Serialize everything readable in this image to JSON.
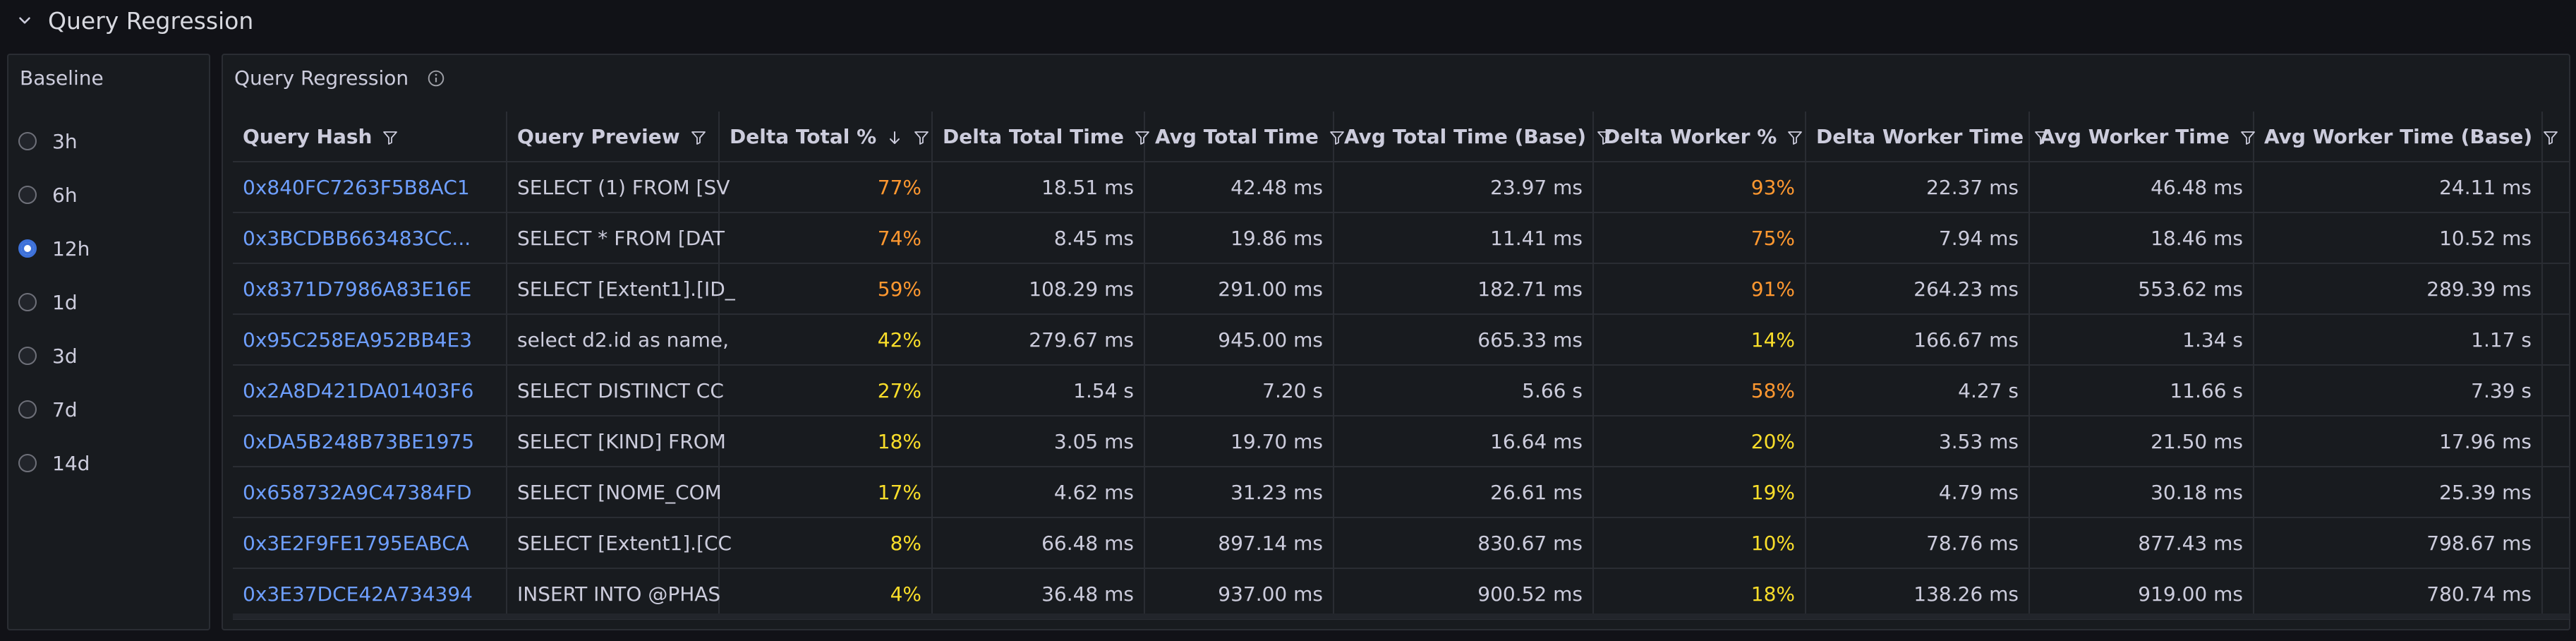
{
  "row": {
    "title": "Query Regression"
  },
  "baseline": {
    "title": "Baseline",
    "options": [
      "3h",
      "6h",
      "12h",
      "1d",
      "3d",
      "7d",
      "14d"
    ],
    "selected": "12h"
  },
  "table": {
    "title": "Query Regression",
    "columns": [
      "Query Hash",
      "Query Preview",
      "Delta Total %",
      "Delta Total Time",
      "Avg Total Time",
      "Avg Total Time (Base)",
      "Delta Worker %",
      "Delta Worker Time",
      "Avg Worker Time",
      "Avg Worker Time (Base)"
    ],
    "sorted_column": "Delta Total %",
    "sort_direction": "descending",
    "rows": [
      [
        "0x840FC7263F5B8AC1",
        "SELECT (1) FROM [SV",
        "77%",
        "18.51 ms",
        "42.48 ms",
        "23.97 ms",
        "93%",
        "22.37 ms",
        "46.48 ms",
        "24.11 ms"
      ],
      [
        "0x3BCDBB663483CC...",
        "SELECT * FROM [DAT",
        "74%",
        "8.45 ms",
        "19.86 ms",
        "11.41 ms",
        "75%",
        "7.94 ms",
        "18.46 ms",
        "10.52 ms"
      ],
      [
        "0x8371D7986A83E16E",
        "SELECT [Extent1].[ID_",
        "59%",
        "108.29 ms",
        "291.00 ms",
        "182.71 ms",
        "91%",
        "264.23 ms",
        "553.62 ms",
        "289.39 ms"
      ],
      [
        "0x95C258EA952BB4E3",
        "select d2.id as name,",
        "42%",
        "279.67 ms",
        "945.00 ms",
        "665.33 ms",
        "14%",
        "166.67 ms",
        "1.34 s",
        "1.17 s"
      ],
      [
        "0x2A8D421DA01403F6",
        "SELECT DISTINCT CC",
        "27%",
        "1.54 s",
        "7.20 s",
        "5.66 s",
        "58%",
        "4.27 s",
        "11.66 s",
        "7.39 s"
      ],
      [
        "0xDA5B248B73BE1975",
        "SELECT [KIND] FROM",
        "18%",
        "3.05 ms",
        "19.70 ms",
        "16.64 ms",
        "20%",
        "3.53 ms",
        "21.50 ms",
        "17.96 ms"
      ],
      [
        "0x658732A9C47384FD",
        "SELECT [NOME_COM",
        "17%",
        "4.62 ms",
        "31.23 ms",
        "26.61 ms",
        "19%",
        "4.79 ms",
        "30.18 ms",
        "25.39 ms"
      ],
      [
        "0x3E2F9FE1795EABCA",
        "SELECT [Extent1].[CC",
        "8%",
        "66.48 ms",
        "897.14 ms",
        "830.67 ms",
        "10%",
        "78.76 ms",
        "877.43 ms",
        "798.67 ms"
      ],
      [
        "0x3E37DCE42A734394",
        "INSERT INTO @PHAS",
        "4%",
        "36.48 ms",
        "937.00 ms",
        "900.52 ms",
        "18%",
        "138.26 ms",
        "919.00 ms",
        "780.74 ms"
      ]
    ],
    "delta_total_colors": [
      "orange",
      "orange",
      "orange",
      "yellow",
      "yellow",
      "yellow",
      "yellow",
      "yellow",
      "yellow"
    ],
    "delta_worker_colors": [
      "orange",
      "orange",
      "orange",
      "yellow",
      "orange",
      "yellow",
      "yellow",
      "yellow",
      "yellow"
    ]
  },
  "colors": {
    "link": "#6e9fff",
    "orange": "#ff9830",
    "yellow": "#fade2a",
    "accent_radio": "#3d71d9",
    "background": "#111217",
    "panel": "#181b1f"
  }
}
